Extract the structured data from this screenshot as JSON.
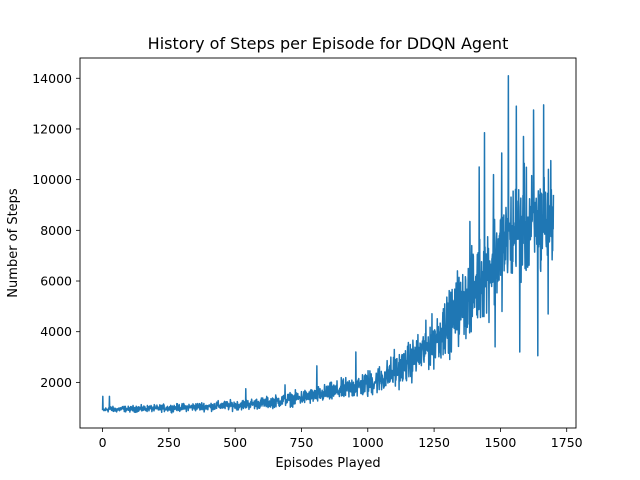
{
  "chart_data": {
    "type": "line",
    "title": "History of Steps per Episode for DDQN Agent",
    "xlabel": "Episodes Played",
    "ylabel": "Number of Steps",
    "xlim": [
      -85,
      1785
    ],
    "ylim": [
      200,
      14800
    ],
    "xticks": [
      0,
      250,
      500,
      750,
      1000,
      1250,
      1500,
      1750
    ],
    "yticks": [
      2000,
      4000,
      6000,
      8000,
      10000,
      12000,
      14000
    ],
    "xtick_labels": [
      "0",
      "250",
      "500",
      "750",
      "1000",
      "1250",
      "1500",
      "1750"
    ],
    "ytick_labels": [
      "2000",
      "4000",
      "6000",
      "8000",
      "10000",
      "12000",
      "14000"
    ],
    "grid": false,
    "line_color": "#1f77b4",
    "series": [
      {
        "x": [
          0,
          25,
          50,
          75,
          100,
          125,
          150,
          175,
          200,
          225,
          250,
          275,
          300,
          325,
          350,
          375,
          400,
          425,
          450,
          475,
          500,
          525,
          550,
          575,
          600,
          625,
          650,
          675,
          700,
          725,
          750,
          775,
          800,
          825,
          850,
          875,
          900,
          925,
          950,
          975,
          1000,
          1025,
          1050,
          1075,
          1100,
          1125,
          1150,
          1175,
          1200,
          1225,
          1250,
          1275,
          1300,
          1325,
          1350,
          1375,
          1400,
          1425,
          1450,
          1475,
          1500,
          1525,
          1550,
          1575,
          1600,
          1625,
          1650,
          1675,
          1700
        ],
        "values": [
          900,
          950,
          920,
          960,
          940,
          970,
          950,
          980,
          960,
          990,
          980,
          1000,
          1010,
          1020,
          1030,
          1050,
          1040,
          1070,
          1080,
          1090,
          1100,
          1120,
          1140,
          1160,
          1180,
          1210,
          1250,
          1280,
          1320,
          1360,
          1400,
          1440,
          1480,
          1530,
          1580,
          1640,
          1700,
          1760,
          1820,
          1880,
          1950,
          2050,
          2150,
          2280,
          2420,
          2580,
          2750,
          2950,
          3150,
          3400,
          3650,
          3950,
          4250,
          4600,
          4950,
          5300,
          5700,
          6050,
          6450,
          6800,
          7150,
          7450,
          7750,
          7950,
          8100,
          8200,
          8250,
          8300,
          8300
        ],
        "spread": [
          100,
          180,
          150,
          170,
          160,
          200,
          190,
          180,
          200,
          210,
          200,
          210,
          220,
          220,
          240,
          250,
          240,
          260,
          260,
          280,
          280,
          290,
          300,
          310,
          320,
          330,
          340,
          360,
          380,
          400,
          420,
          440,
          460,
          480,
          520,
          550,
          580,
          620,
          660,
          700,
          740,
          780,
          820,
          880,
          940,
          1000,
          1080,
          1160,
          1240,
          1340,
          1440,
          1560,
          1680,
          1820,
          1960,
          2100,
          2250,
          2400,
          2550,
          2700,
          2850,
          2950,
          3050,
          3100,
          3150,
          3150,
          3150,
          3100,
          2200
        ],
        "peaks": [
          [
            1,
            1450
          ],
          [
            26,
            1450
          ],
          [
            540,
            1750
          ],
          [
            688,
            1900
          ],
          [
            808,
            2650
          ],
          [
            955,
            3200
          ],
          [
            1100,
            3300
          ],
          [
            1290,
            5100
          ],
          [
            1338,
            6400
          ],
          [
            1385,
            8350
          ],
          [
            1420,
            10500
          ],
          [
            1440,
            11850
          ],
          [
            1474,
            10200
          ],
          [
            1505,
            11050
          ],
          [
            1530,
            14100
          ],
          [
            1560,
            12900
          ],
          [
            1587,
            11700
          ],
          [
            1625,
            12750
          ],
          [
            1663,
            12950
          ],
          [
            1680,
            13800
          ],
          [
            1690,
            10750
          ],
          [
            1700,
            10000
          ]
        ],
        "troughs": [
          [
            1000,
            1450
          ],
          [
            1305,
            3150
          ],
          [
            1390,
            4000
          ],
          [
            1480,
            3400
          ],
          [
            1573,
            3200
          ],
          [
            1641,
            3050
          ],
          [
            1680,
            4700
          ],
          [
            1700,
            9400
          ]
        ]
      }
    ]
  }
}
